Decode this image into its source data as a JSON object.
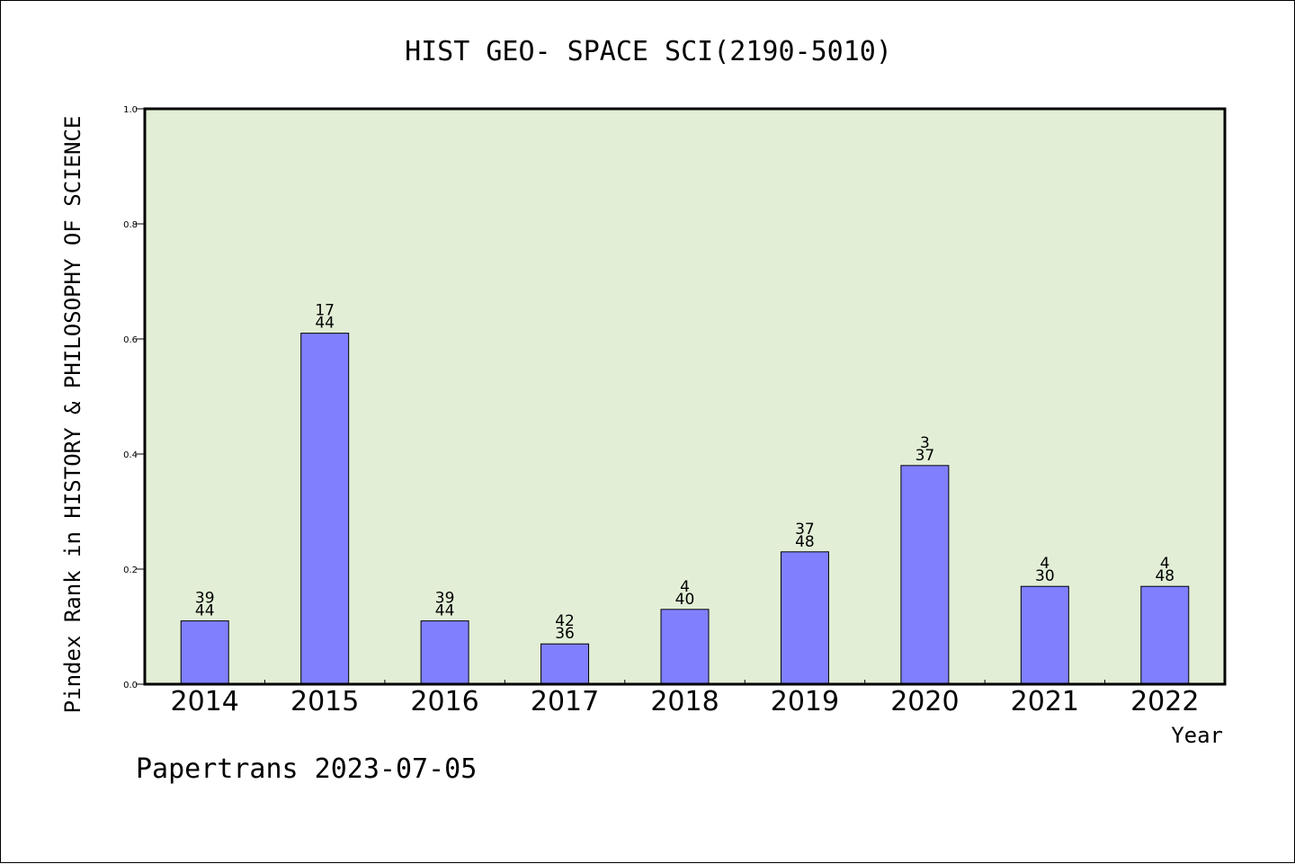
{
  "chart_data": {
    "type": "bar",
    "title": "HIST GEO- SPACE SCI(2190-5010)",
    "xlabel": "Year",
    "ylabel": "Pindex Rank in HISTORY & PHILOSOPHY OF SCIENCE",
    "ylim": [
      0,
      1.0
    ],
    "yticks": [
      "0.0",
      "0.2",
      "0.4",
      "0.6",
      "0.8",
      "1.0"
    ],
    "grid": false,
    "categories": [
      "2014",
      "2015",
      "2016",
      "2017",
      "2018",
      "2019",
      "2020",
      "2021",
      "2022"
    ],
    "values": [
      0.11,
      0.61,
      0.11,
      0.07,
      0.13,
      0.23,
      0.38,
      0.17,
      0.17
    ],
    "labels_top": [
      "39",
      "17",
      "39",
      "42",
      "4",
      "37",
      "3",
      "4",
      "4"
    ],
    "labels_bottom": [
      "44",
      "44",
      "44",
      "36",
      "40",
      "48",
      "37",
      "30",
      "48"
    ],
    "bar_color": "#8080ff",
    "plot_background": "#e2efd6"
  },
  "footer": "Papertrans 2023-07-05"
}
